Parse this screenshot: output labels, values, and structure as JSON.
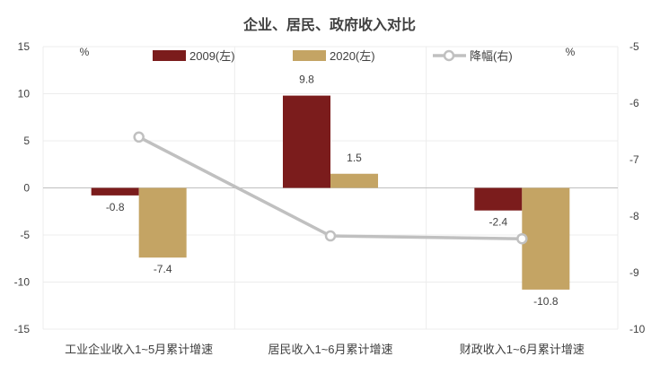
{
  "chart_data": {
    "type": "bar",
    "title": "企业、居民、政府收入对比",
    "categories": [
      "工业企业收入1~5月累计增速",
      "居民收入1~6月累计增速",
      "财政收入1~6月累计增速"
    ],
    "series": [
      {
        "name": "2009(左)",
        "type": "bar",
        "axis": "left",
        "color": "#7b1c1c",
        "values": [
          -0.8,
          9.8,
          -2.4
        ]
      },
      {
        "name": "2020(左)",
        "type": "bar",
        "axis": "left",
        "color": "#c4a464",
        "values": [
          -7.4,
          1.5,
          -10.8
        ]
      },
      {
        "name": "降幅(右)",
        "type": "line",
        "axis": "right",
        "color": "#c0c0c0",
        "values": [
          -6.6,
          -8.35,
          -8.4
        ]
      }
    ],
    "left_axis": {
      "unit": "%",
      "min": -15,
      "max": 15,
      "step": 5,
      "ticks": [
        "15",
        "10",
        "5",
        "0",
        "-5",
        "-10",
        "-15"
      ]
    },
    "right_axis": {
      "unit": "%",
      "min": -10,
      "max": -5,
      "step": 1,
      "ticks": [
        "-5",
        "-6",
        "-7",
        "-8",
        "-9",
        "-10"
      ]
    },
    "data_labels": [
      [
        "-0.8",
        "9.8",
        "-2.4"
      ],
      [
        "-7.4",
        "1.5",
        "-10.8"
      ]
    ],
    "legend_position": "top"
  }
}
